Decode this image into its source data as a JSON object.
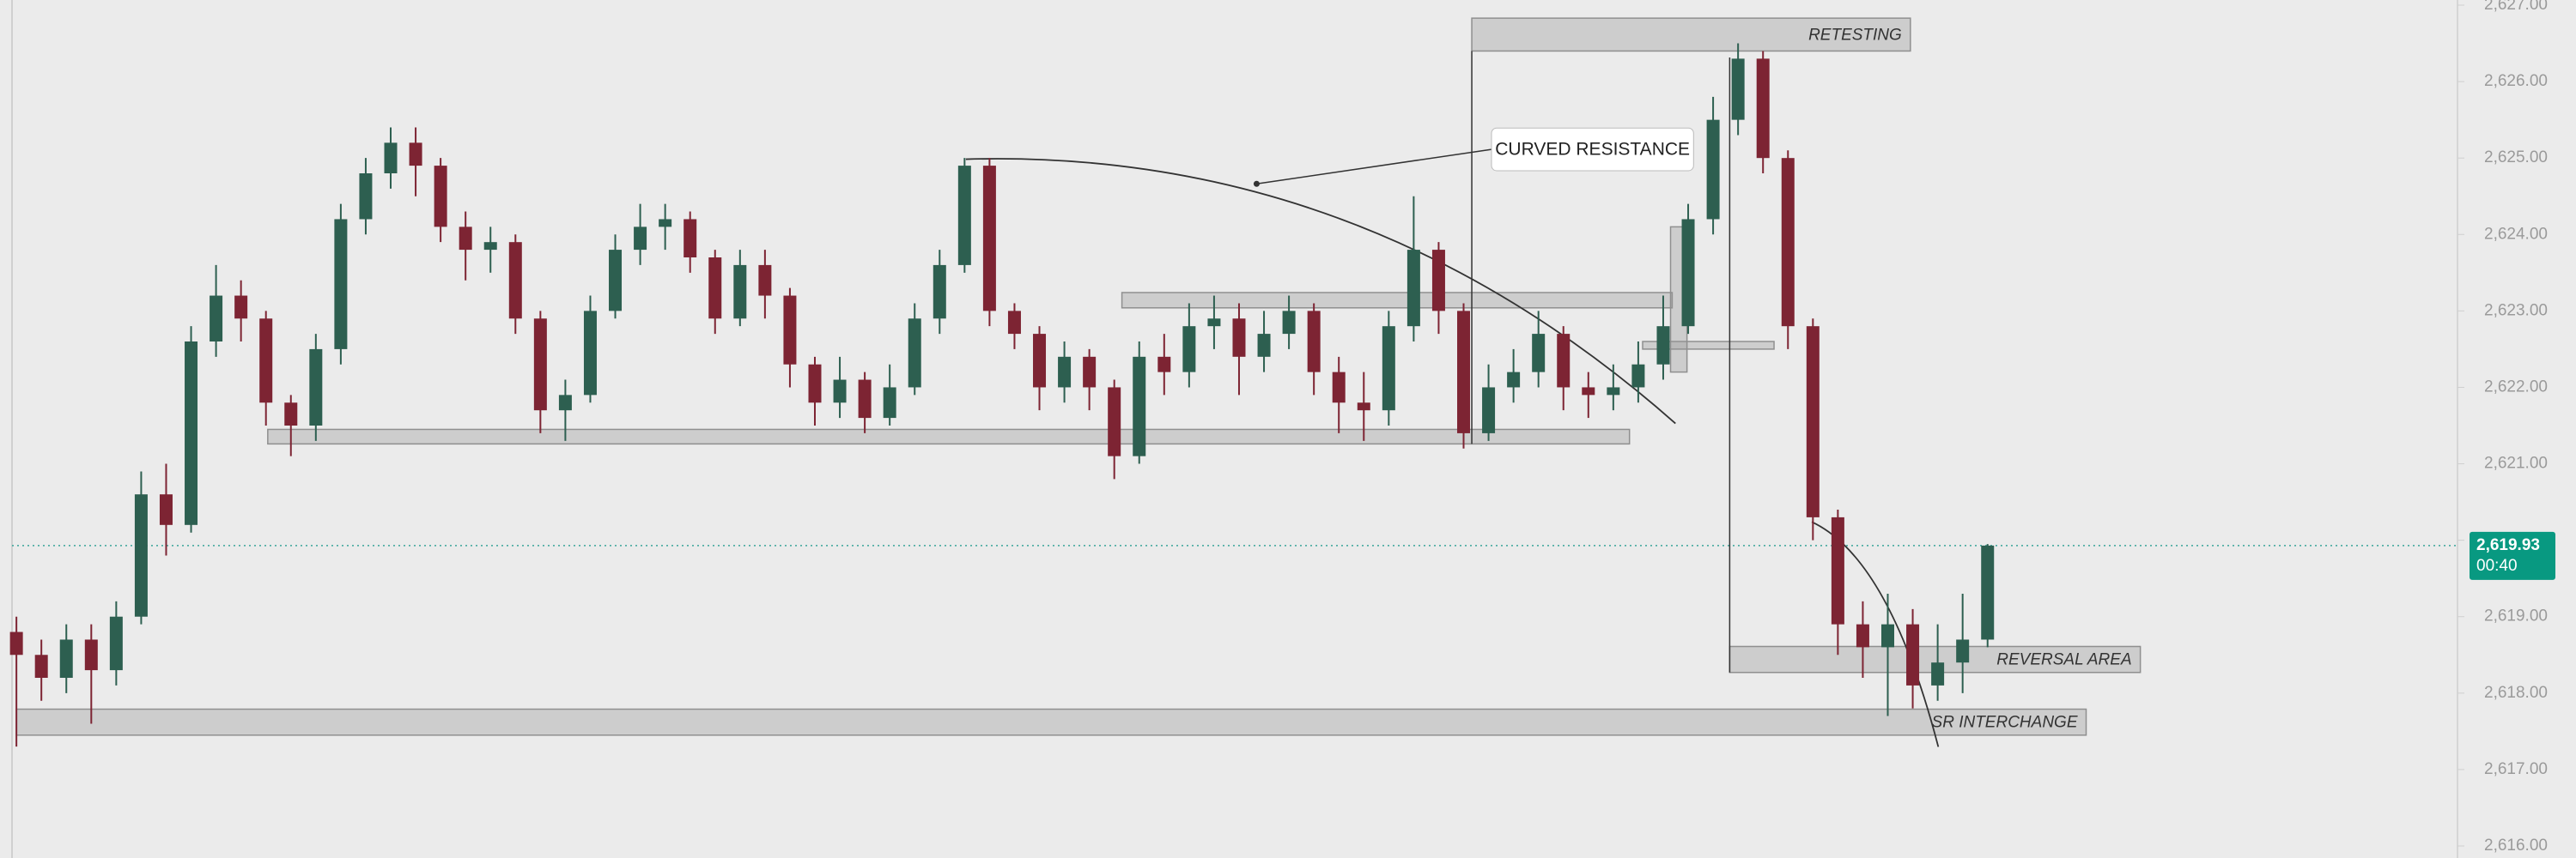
{
  "chart_data": {
    "type": "candlestick",
    "up_color": "#2d5f50",
    "down_color": "#7d2433",
    "ylim": [
      2616,
      2627
    ],
    "yticks": [
      {
        "value": 2616,
        "label": "2,616.00"
      },
      {
        "value": 2617,
        "label": "2,617.00"
      },
      {
        "value": 2618,
        "label": "2,618.00"
      },
      {
        "value": 2619,
        "label": "2,619.00"
      },
      {
        "value": 2620,
        "label": "2,620.00"
      },
      {
        "value": 2621,
        "label": "2,621.00"
      },
      {
        "value": 2622,
        "label": "2,622.00"
      },
      {
        "value": 2623,
        "label": "2,623.00"
      },
      {
        "value": 2624,
        "label": "2,624.00"
      },
      {
        "value": 2625,
        "label": "2,625.00"
      },
      {
        "value": 2626,
        "label": "2,626.00"
      },
      {
        "value": 2627,
        "label": "2,627.00"
      }
    ],
    "last_price": {
      "value": 2619.93,
      "label": "2,619.93"
    },
    "countdown": "00:40",
    "callout": "CURVED RESISTANCE",
    "zones": [
      {
        "low": 2617.45,
        "high": 2617.79,
        "label": "SR INTERCHANGE"
      },
      {
        "low": 2618.27,
        "high": 2618.61,
        "label": "REVERSAL AREA"
      },
      {
        "low": 2626.4,
        "high": 2626.83,
        "label": "RETESTING"
      },
      {
        "low": 2621.26,
        "high": 2621.45
      },
      {
        "low": 2623.04,
        "high": 2623.24
      },
      {
        "low": 2622.5,
        "high": 2622.6
      },
      {
        "low": 2622.2,
        "high": 2624.1
      }
    ],
    "open": [
      2618.8,
      2618.5,
      2618.2,
      2618.7,
      2618.3,
      2619.0,
      2620.6,
      2620.2,
      2622.6,
      2623.2,
      2622.9,
      2621.8,
      2621.5,
      2622.5,
      2624.2,
      2624.8,
      2625.2,
      2624.9,
      2624.1,
      2623.8,
      2623.9,
      2622.9,
      2621.7,
      2621.9,
      2623.0,
      2623.8,
      2624.1,
      2624.2,
      2623.7,
      2622.9,
      2623.6,
      2623.2,
      2622.3,
      2621.8,
      2622.1,
      2621.6,
      2622.0,
      2622.9,
      2623.6,
      2624.9,
      2623.0,
      2622.7,
      2622.0,
      2622.4,
      2622.0,
      2621.1,
      2622.4,
      2622.2,
      2622.8,
      2622.9,
      2622.4,
      2622.7,
      2623.0,
      2622.2,
      2621.8,
      2621.7,
      2622.8,
      2623.8,
      2623.0,
      2621.4,
      2622.0,
      2622.2,
      2622.7,
      2622.0,
      2621.9,
      2622.0,
      2622.3,
      2622.8,
      2624.2,
      2625.5,
      2626.3,
      2625.0,
      2622.8,
      2620.3,
      2618.9,
      2618.6,
      2618.9,
      2618.1,
      2618.4,
      2618.7
    ],
    "high": [
      2619.0,
      2618.7,
      2618.9,
      2618.9,
      2619.2,
      2620.9,
      2621.0,
      2622.8,
      2623.6,
      2623.4,
      2623.0,
      2621.9,
      2622.7,
      2624.4,
      2625.0,
      2625.4,
      2625.4,
      2625.0,
      2624.3,
      2624.1,
      2624.0,
      2623.0,
      2622.1,
      2623.2,
      2624.0,
      2624.4,
      2624.4,
      2624.3,
      2623.8,
      2623.8,
      2623.8,
      2623.3,
      2622.4,
      2622.4,
      2622.2,
      2622.3,
      2623.1,
      2623.8,
      2625.0,
      2625.0,
      2623.1,
      2622.8,
      2622.6,
      2622.5,
      2622.1,
      2622.6,
      2622.7,
      2623.1,
      2623.2,
      2623.1,
      2623.0,
      2623.2,
      2623.1,
      2622.4,
      2622.2,
      2623.0,
      2624.5,
      2623.9,
      2623.1,
      2622.3,
      2622.5,
      2623.0,
      2622.8,
      2622.2,
      2622.3,
      2622.6,
      2623.2,
      2624.4,
      2625.8,
      2626.5,
      2626.4,
      2625.1,
      2622.9,
      2620.4,
      2619.2,
      2619.3,
      2619.1,
      2618.9,
      2619.3,
      2619.95
    ],
    "low": [
      2617.3,
      2617.9,
      2618.0,
      2617.6,
      2618.1,
      2618.9,
      2619.8,
      2620.1,
      2622.4,
      2622.6,
      2621.5,
      2621.1,
      2621.3,
      2622.3,
      2624.0,
      2624.6,
      2624.5,
      2623.9,
      2623.4,
      2623.5,
      2622.7,
      2621.4,
      2621.3,
      2621.8,
      2622.9,
      2623.6,
      2623.8,
      2623.5,
      2622.7,
      2622.8,
      2622.9,
      2622.0,
      2621.5,
      2621.6,
      2621.4,
      2621.5,
      2621.9,
      2622.7,
      2623.5,
      2622.8,
      2622.5,
      2621.7,
      2621.8,
      2621.7,
      2620.8,
      2621.0,
      2621.9,
      2622.0,
      2622.5,
      2621.9,
      2622.2,
      2622.5,
      2621.9,
      2621.4,
      2621.3,
      2621.5,
      2622.6,
      2622.7,
      2621.2,
      2621.3,
      2621.8,
      2622.0,
      2621.7,
      2621.6,
      2621.7,
      2621.8,
      2622.1,
      2622.7,
      2624.0,
      2625.3,
      2624.8,
      2622.5,
      2620.0,
      2618.5,
      2618.2,
      2617.7,
      2617.8,
      2617.9,
      2618.0,
      2618.6
    ],
    "close": [
      2618.5,
      2618.2,
      2618.7,
      2618.3,
      2619.0,
      2620.6,
      2620.2,
      2622.6,
      2623.2,
      2622.9,
      2621.8,
      2621.5,
      2622.5,
      2624.2,
      2624.8,
      2625.2,
      2624.9,
      2624.1,
      2623.8,
      2623.9,
      2622.9,
      2621.7,
      2621.9,
      2623.0,
      2623.8,
      2624.1,
      2624.2,
      2623.7,
      2622.9,
      2623.6,
      2623.2,
      2622.3,
      2621.8,
      2622.1,
      2621.6,
      2622.0,
      2622.9,
      2623.6,
      2624.9,
      2623.0,
      2622.7,
      2622.0,
      2622.4,
      2622.0,
      2621.1,
      2622.4,
      2622.2,
      2622.8,
      2622.9,
      2622.4,
      2622.7,
      2623.0,
      2622.2,
      2621.8,
      2621.7,
      2622.8,
      2623.8,
      2623.0,
      2621.4,
      2622.0,
      2622.2,
      2622.7,
      2622.0,
      2621.9,
      2622.0,
      2622.3,
      2622.8,
      2624.2,
      2625.5,
      2626.3,
      2625.0,
      2622.8,
      2620.3,
      2618.9,
      2618.6,
      2618.9,
      2618.1,
      2618.4,
      2618.7,
      2619.93
    ]
  }
}
